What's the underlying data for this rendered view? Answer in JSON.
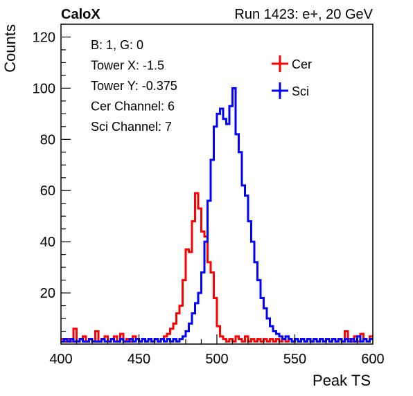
{
  "chart_data": {
    "type": "line",
    "title_left": "CaloX",
    "title_right": "Run 1423: e+, 20 GeV",
    "xlabel": "Peak TS",
    "ylabel": "Counts",
    "xlim": [
      400,
      600
    ],
    "ylim": [
      0,
      125
    ],
    "x_ticks": [
      400,
      450,
      500,
      550,
      600
    ],
    "y_ticks": [
      20,
      40,
      60,
      80,
      100,
      120
    ],
    "grid": false,
    "legend_position": "top-right",
    "info_lines": [
      "B: 1, G: 0",
      "Tower X: -1.5",
      "Tower Y: -0.375",
      "Cer Channel: 6",
      "Sci Channel: 7"
    ],
    "series": [
      {
        "name": "Cer",
        "color": "#ff0000",
        "points": [
          [
            400,
            2
          ],
          [
            402,
            1
          ],
          [
            404,
            2
          ],
          [
            406,
            1
          ],
          [
            408,
            6
          ],
          [
            410,
            1
          ],
          [
            412,
            2
          ],
          [
            414,
            3
          ],
          [
            416,
            1
          ],
          [
            418,
            2
          ],
          [
            420,
            1
          ],
          [
            422,
            5
          ],
          [
            424,
            1
          ],
          [
            426,
            2
          ],
          [
            428,
            3
          ],
          [
            430,
            1
          ],
          [
            432,
            2
          ],
          [
            434,
            3
          ],
          [
            436,
            1
          ],
          [
            438,
            4
          ],
          [
            440,
            1
          ],
          [
            442,
            2
          ],
          [
            444,
            1
          ],
          [
            446,
            3
          ],
          [
            448,
            2
          ],
          [
            450,
            1
          ],
          [
            452,
            2
          ],
          [
            454,
            1
          ],
          [
            456,
            2
          ],
          [
            458,
            1
          ],
          [
            460,
            2
          ],
          [
            462,
            1
          ],
          [
            464,
            2
          ],
          [
            466,
            3
          ],
          [
            468,
            4
          ],
          [
            470,
            6
          ],
          [
            472,
            8
          ],
          [
            474,
            12
          ],
          [
            476,
            15
          ],
          [
            478,
            25
          ],
          [
            480,
            37
          ],
          [
            482,
            36
          ],
          [
            484,
            48
          ],
          [
            486,
            59
          ],
          [
            488,
            53
          ],
          [
            490,
            44
          ],
          [
            492,
            42
          ],
          [
            494,
            32
          ],
          [
            496,
            28
          ],
          [
            498,
            18
          ],
          [
            500,
            7
          ],
          [
            502,
            3
          ],
          [
            504,
            2
          ],
          [
            506,
            1
          ],
          [
            508,
            2
          ],
          [
            510,
            1
          ],
          [
            512,
            3
          ],
          [
            514,
            2
          ],
          [
            516,
            1
          ],
          [
            518,
            3
          ],
          [
            520,
            1
          ],
          [
            522,
            2
          ],
          [
            524,
            1
          ],
          [
            526,
            2
          ],
          [
            528,
            1
          ],
          [
            530,
            2
          ],
          [
            532,
            1
          ],
          [
            534,
            2
          ],
          [
            536,
            1
          ],
          [
            538,
            2
          ],
          [
            540,
            1
          ],
          [
            542,
            2
          ],
          [
            544,
            1
          ],
          [
            546,
            2
          ],
          [
            548,
            1
          ],
          [
            550,
            2
          ],
          [
            552,
            1
          ],
          [
            554,
            2
          ],
          [
            556,
            1
          ],
          [
            558,
            2
          ],
          [
            560,
            1
          ],
          [
            562,
            2
          ],
          [
            564,
            1
          ],
          [
            566,
            2
          ],
          [
            568,
            1
          ],
          [
            570,
            2
          ],
          [
            572,
            1
          ],
          [
            574,
            2
          ],
          [
            576,
            1
          ],
          [
            578,
            2
          ],
          [
            580,
            1
          ],
          [
            582,
            5
          ],
          [
            584,
            2
          ],
          [
            586,
            1
          ],
          [
            588,
            3
          ],
          [
            590,
            1
          ],
          [
            592,
            4
          ],
          [
            594,
            2
          ],
          [
            596,
            1
          ],
          [
            598,
            3
          ]
        ]
      },
      {
        "name": "Sci",
        "color": "#0000ff",
        "points": [
          [
            400,
            1
          ],
          [
            402,
            2
          ],
          [
            404,
            1
          ],
          [
            406,
            2
          ],
          [
            408,
            1
          ],
          [
            410,
            1
          ],
          [
            412,
            2
          ],
          [
            414,
            1
          ],
          [
            416,
            1
          ],
          [
            418,
            2
          ],
          [
            420,
            1
          ],
          [
            422,
            1
          ],
          [
            424,
            1
          ],
          [
            426,
            2
          ],
          [
            428,
            1
          ],
          [
            430,
            1
          ],
          [
            432,
            2
          ],
          [
            434,
            1
          ],
          [
            436,
            1
          ],
          [
            438,
            2
          ],
          [
            440,
            1
          ],
          [
            442,
            1
          ],
          [
            444,
            2
          ],
          [
            446,
            1
          ],
          [
            448,
            2
          ],
          [
            450,
            1
          ],
          [
            452,
            2
          ],
          [
            454,
            1
          ],
          [
            456,
            2
          ],
          [
            458,
            1
          ],
          [
            460,
            2
          ],
          [
            462,
            1
          ],
          [
            464,
            2
          ],
          [
            466,
            1
          ],
          [
            468,
            2
          ],
          [
            470,
            1
          ],
          [
            472,
            2
          ],
          [
            474,
            1
          ],
          [
            476,
            2
          ],
          [
            478,
            3
          ],
          [
            480,
            5
          ],
          [
            482,
            8
          ],
          [
            484,
            12
          ],
          [
            486,
            16
          ],
          [
            488,
            20
          ],
          [
            490,
            28
          ],
          [
            492,
            40
          ],
          [
            494,
            56
          ],
          [
            496,
            72
          ],
          [
            498,
            85
          ],
          [
            500,
            90
          ],
          [
            502,
            92
          ],
          [
            504,
            88
          ],
          [
            506,
            86
          ],
          [
            508,
            93
          ],
          [
            510,
            100
          ],
          [
            512,
            82
          ],
          [
            514,
            75
          ],
          [
            516,
            62
          ],
          [
            518,
            58
          ],
          [
            520,
            48
          ],
          [
            522,
            40
          ],
          [
            524,
            32
          ],
          [
            526,
            25
          ],
          [
            528,
            18
          ],
          [
            530,
            14
          ],
          [
            532,
            10
          ],
          [
            534,
            7
          ],
          [
            536,
            5
          ],
          [
            538,
            4
          ],
          [
            540,
            3
          ],
          [
            542,
            2
          ],
          [
            544,
            3
          ],
          [
            546,
            2
          ],
          [
            548,
            1
          ],
          [
            550,
            2
          ],
          [
            552,
            1
          ],
          [
            554,
            2
          ],
          [
            556,
            1
          ],
          [
            558,
            2
          ],
          [
            560,
            1
          ],
          [
            562,
            2
          ],
          [
            564,
            1
          ],
          [
            566,
            2
          ],
          [
            568,
            1
          ],
          [
            570,
            2
          ],
          [
            572,
            1
          ],
          [
            574,
            2
          ],
          [
            576,
            1
          ],
          [
            578,
            2
          ],
          [
            580,
            1
          ],
          [
            582,
            2
          ],
          [
            584,
            1
          ],
          [
            586,
            2
          ],
          [
            588,
            1
          ],
          [
            590,
            3
          ],
          [
            592,
            1
          ],
          [
            594,
            2
          ],
          [
            596,
            1
          ],
          [
            598,
            2
          ]
        ]
      }
    ]
  }
}
